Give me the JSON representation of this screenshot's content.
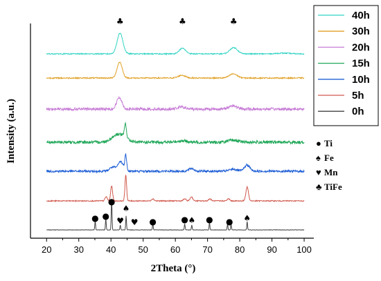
{
  "chart_data": {
    "type": "line",
    "xlabel": "2Theta (°)",
    "ylabel": "Intensity (a.u.)",
    "xlim": [
      15,
      103
    ],
    "xticks": [
      20,
      30,
      40,
      50,
      60,
      70,
      80,
      90,
      100
    ],
    "xticklabels": [
      "20",
      "30",
      "40",
      "50",
      "60",
      "70",
      "80",
      "90",
      "100"
    ],
    "yticks_shown": false,
    "legend_position": "top-right",
    "series": [
      {
        "name": "0h",
        "color": "#404040",
        "noise": 0.25,
        "baseline": 0,
        "peaks": [
          [
            35.1,
            13,
            0.12
          ],
          [
            38.4,
            16,
            0.12
          ],
          [
            40.2,
            45,
            0.12
          ],
          [
            42.9,
            7,
            0.12
          ],
          [
            44.7,
            20,
            0.12
          ],
          [
            53.0,
            9,
            0.12
          ],
          [
            62.9,
            9,
            0.12
          ],
          [
            65.1,
            7,
            0.12
          ],
          [
            70.6,
            10,
            0.12
          ],
          [
            76.2,
            8,
            0.12
          ],
          [
            77.3,
            8,
            0.12
          ],
          [
            82.3,
            12,
            0.12
          ]
        ]
      },
      {
        "name": "5h",
        "color": "#d0584c",
        "noise": 0.7,
        "baseline": 0,
        "peaks": [
          [
            38.5,
            6,
            0.35
          ],
          [
            40.2,
            22,
            0.3
          ],
          [
            44.6,
            38,
            0.25
          ],
          [
            53.0,
            3,
            0.4
          ],
          [
            62.9,
            3,
            0.4
          ],
          [
            65.0,
            6,
            0.4
          ],
          [
            70.7,
            3,
            0.4
          ],
          [
            76.5,
            3,
            0.4
          ],
          [
            82.3,
            20,
            0.4
          ]
        ]
      },
      {
        "name": "10h",
        "color": "#1f5fd6",
        "noise": 1.6,
        "baseline": 0,
        "peaks": [
          [
            40.5,
            6,
            0.9
          ],
          [
            43.0,
            14,
            0.8
          ],
          [
            44.6,
            22,
            0.3
          ],
          [
            65.0,
            4,
            0.8
          ],
          [
            82.3,
            9,
            0.8
          ],
          [
            78.0,
            3,
            1.2
          ]
        ]
      },
      {
        "name": "15h",
        "color": "#22a85a",
        "noise": 2.2,
        "baseline": 0,
        "peaks": [
          [
            42.5,
            12,
            2.0
          ],
          [
            44.5,
            20,
            0.3
          ],
          [
            62.0,
            2,
            1.5
          ],
          [
            78.0,
            3,
            1.5
          ]
        ]
      },
      {
        "name": "20h",
        "color": "#c77dd6",
        "noise": 2.0,
        "baseline": 0,
        "peaks": [
          [
            42.6,
            17,
            0.8
          ],
          [
            61.8,
            3,
            1.2
          ],
          [
            77.8,
            5,
            1.2
          ]
        ]
      },
      {
        "name": "30h",
        "color": "#e0a024",
        "noise": 0.8,
        "baseline": 0,
        "peaks": [
          [
            42.7,
            23,
            0.8
          ],
          [
            62.0,
            4,
            1.1
          ],
          [
            78.0,
            6,
            1.2
          ]
        ]
      },
      {
        "name": "40h",
        "color": "#2ed3c3",
        "noise": 0.7,
        "baseline": 0,
        "peaks": [
          [
            42.8,
            30,
            0.9
          ],
          [
            62.2,
            8,
            1.0
          ],
          [
            78.1,
            9,
            1.2
          ],
          [
            93.5,
            1,
            2.0
          ]
        ]
      }
    ],
    "phase_legend": [
      {
        "symbol": "●",
        "name": "Ti"
      },
      {
        "symbol": "♠",
        "name": "Fe"
      },
      {
        "symbol": "♥",
        "name": "Mn"
      },
      {
        "symbol": "♣",
        "name": "TiFe"
      }
    ],
    "top_markers": [
      {
        "x": 42.8,
        "symbol": "♣"
      },
      {
        "x": 62.2,
        "symbol": "♣"
      },
      {
        "x": 78.1,
        "symbol": "♣"
      }
    ],
    "base_markers": [
      {
        "x": 35.1,
        "symbol": "●"
      },
      {
        "x": 38.4,
        "symbol": "●"
      },
      {
        "x": 40.2,
        "symbol": "●"
      },
      {
        "x": 42.9,
        "symbol": "♥"
      },
      {
        "x": 44.7,
        "symbol": "♠"
      },
      {
        "x": 47.3,
        "symbol": "♥"
      },
      {
        "x": 53.0,
        "symbol": "●"
      },
      {
        "x": 62.9,
        "symbol": "●"
      },
      {
        "x": 65.1,
        "symbol": "♠"
      },
      {
        "x": 70.6,
        "symbol": "●"
      },
      {
        "x": 76.8,
        "symbol": "●"
      },
      {
        "x": 82.3,
        "symbol": "♠"
      }
    ]
  }
}
